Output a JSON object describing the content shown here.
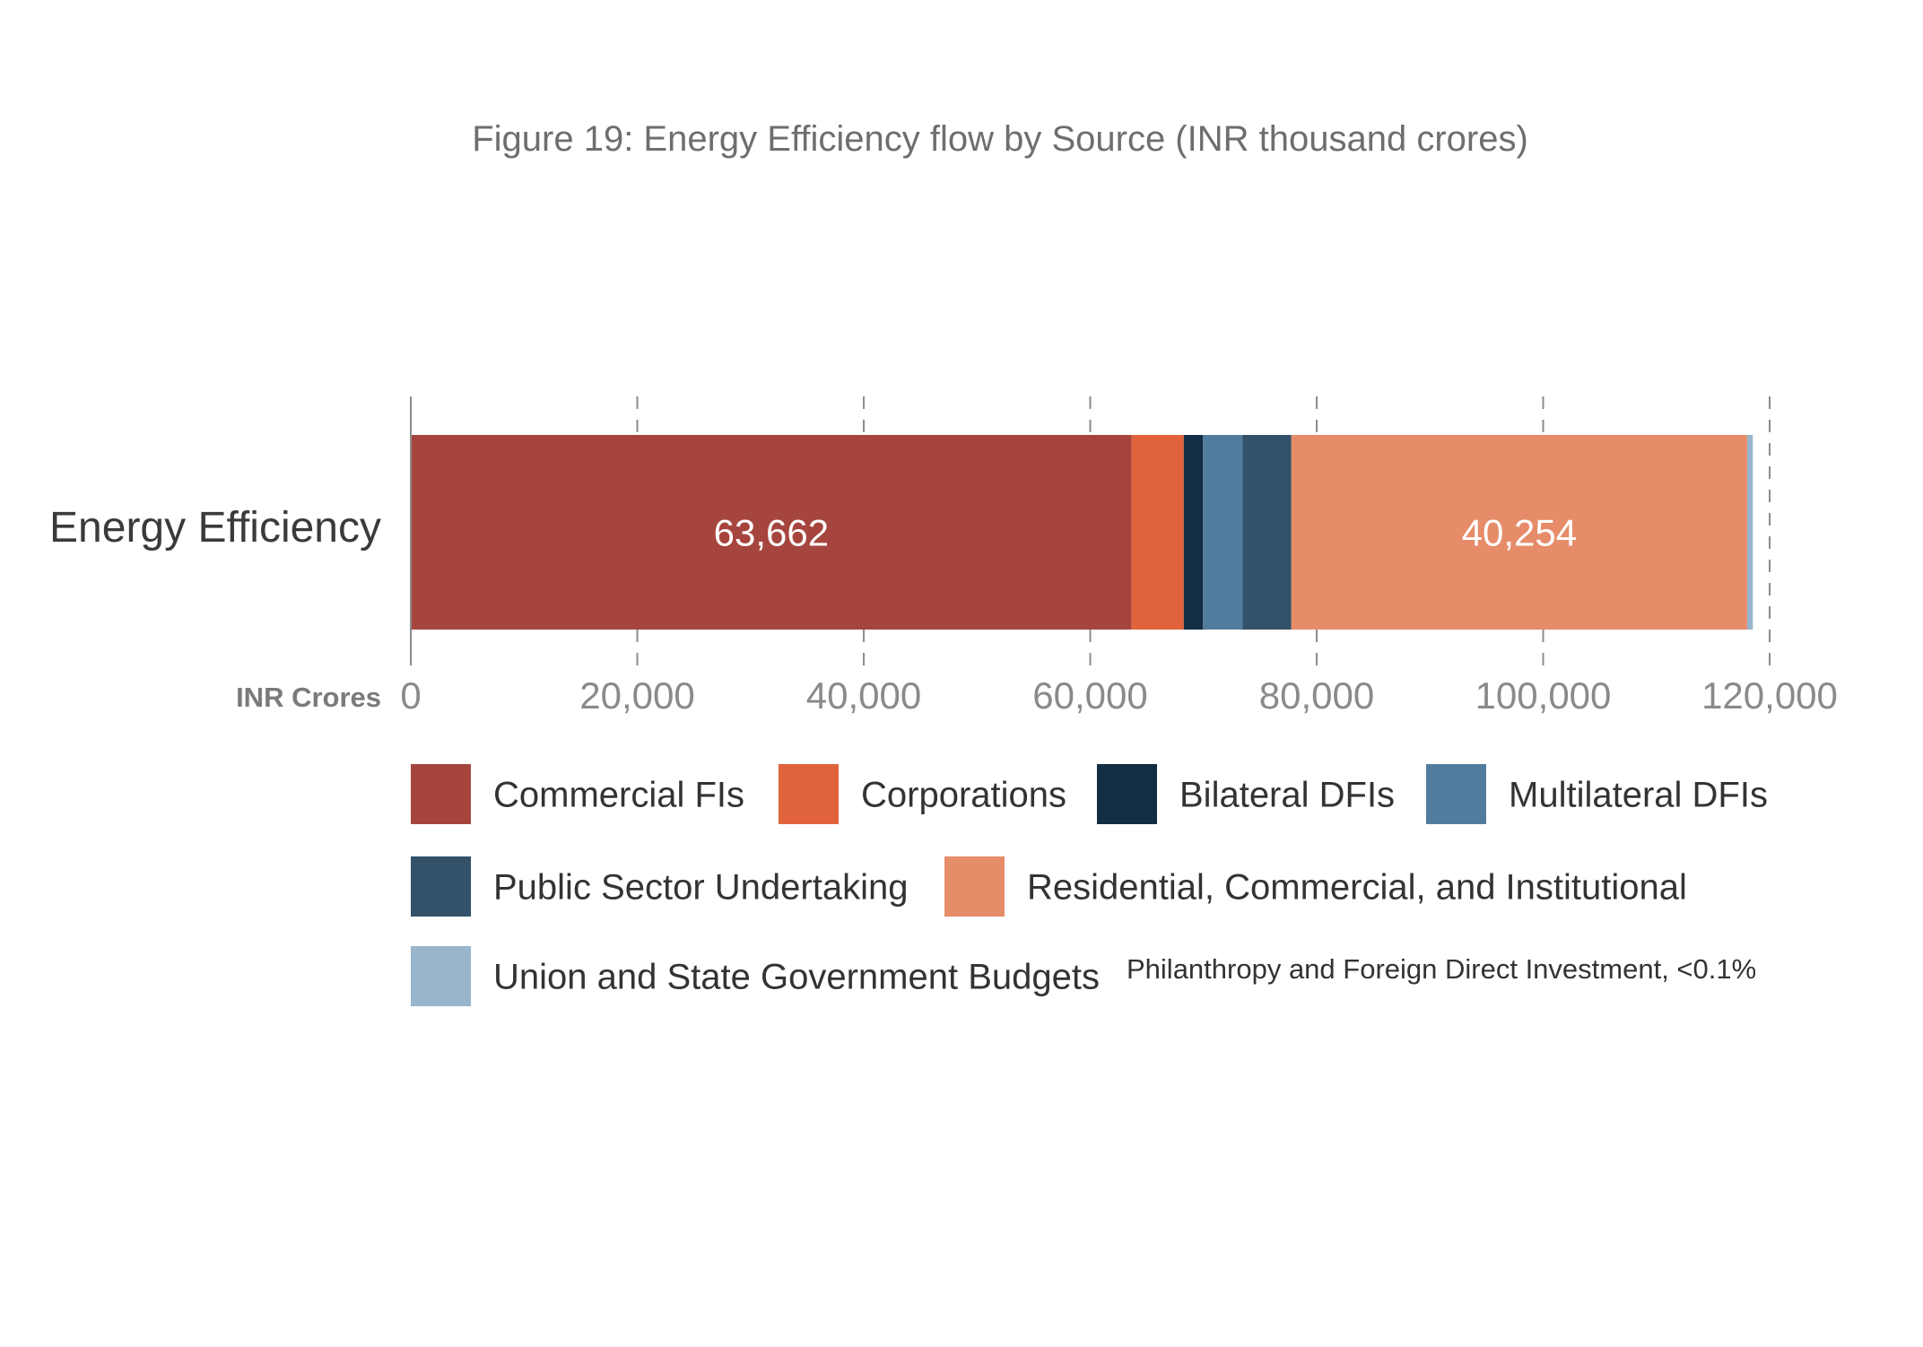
{
  "chart_data": {
    "type": "bar",
    "orientation": "horizontal",
    "stacked": true,
    "title": "Figure 19: Energy Efficiency flow by Source (INR thousand crores)",
    "xlabel": "INR Crores",
    "categories": [
      "Energy Efficiency"
    ],
    "xlim": [
      0,
      120000
    ],
    "xticks": [
      0,
      20000,
      40000,
      60000,
      80000,
      100000,
      120000
    ],
    "xtick_labels": [
      "0",
      "20,000",
      "40,000",
      "60,000",
      "80,000",
      "100,000",
      "120,000"
    ],
    "grid": "vertical dashed",
    "legend_position": "bottom",
    "series": [
      {
        "name": "Commercial FIs",
        "values": [
          63662
        ],
        "color": "#a6453e",
        "label": "63,662"
      },
      {
        "name": "Corporations",
        "values": [
          4600
        ],
        "color": "#e0633c"
      },
      {
        "name": "Bilateral DFIs",
        "values": [
          1700
        ],
        "color": "#132e44"
      },
      {
        "name": "Multilateral DFIs",
        "values": [
          3500
        ],
        "color": "#527c9d"
      },
      {
        "name": "Public Sector Undertaking",
        "values": [
          4300
        ],
        "color": "#33526a"
      },
      {
        "name": "Residential, Commercial, and Institutional",
        "values": [
          40254
        ],
        "color": "#e68c69",
        "label": "40,254"
      },
      {
        "name": "Union and State Government Budgets",
        "values": [
          500
        ],
        "color": "#98b5cb"
      }
    ],
    "legend_note": "Philanthropy and Foreign Direct Investment, <0.1%",
    "colors": {
      "title": "#6e6e6e",
      "category_label": "#3a3a3a",
      "axis_title": "#7a7a7a",
      "tick_label": "#8a8a8a",
      "grid": "#8c8c8c",
      "bar_label": "#ffffff",
      "legend_text": "#333333"
    }
  }
}
